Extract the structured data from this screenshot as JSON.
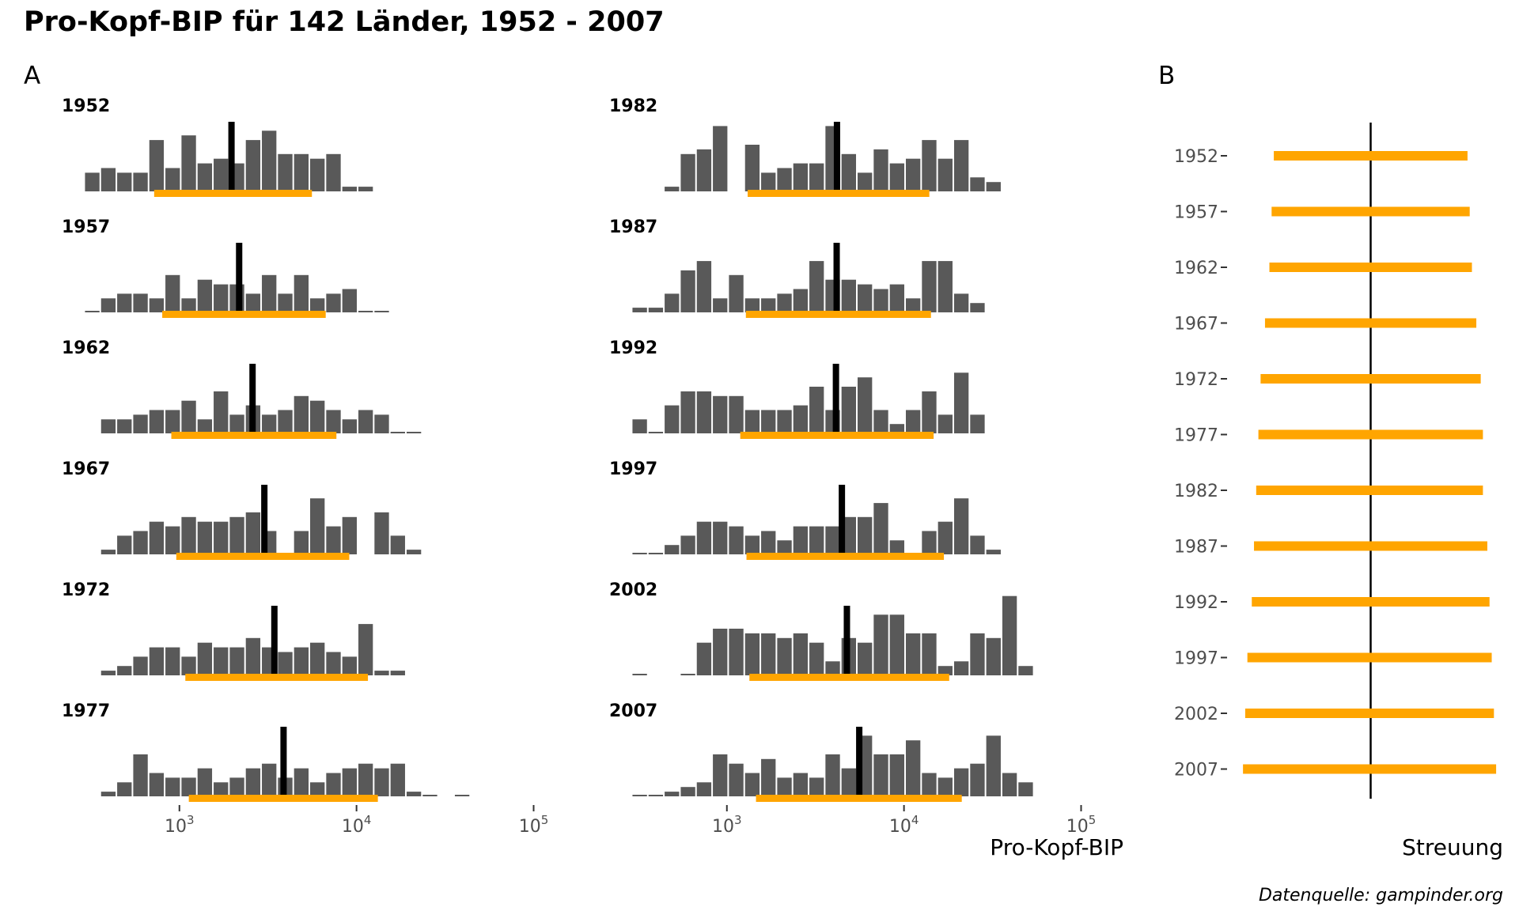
{
  "title": "Pro-Kopf-BIP für 142 Länder, 1952 - 2007",
  "caption": "Datenquelle: gampinder.org",
  "panel_a": {
    "tag": "A",
    "xlabel": "Pro-Kopf-BIP"
  },
  "panel_b": {
    "tag": "B",
    "xlabel": "Streuung"
  },
  "colors": {
    "bar": "#595959",
    "median": "#000000",
    "range": "#FFA500",
    "text": "#000000",
    "axis_text": "#4d4d4d"
  },
  "chart_data": [
    {
      "type": "bar",
      "name": "A",
      "x_scale": "log10",
      "x_ticks": [
        {
          "base": "10",
          "exp": "3",
          "value": 1000
        },
        {
          "base": "10",
          "exp": "4",
          "value": 10000
        },
        {
          "base": "10",
          "exp": "5",
          "value": 100000
        }
      ],
      "xlim": [
        250,
        130000
      ],
      "log_bin_width": 0.0908,
      "first_bin_center": 322,
      "panels": [
        {
          "year": "1952",
          "median": 1968,
          "range": [
            720,
            5600
          ],
          "counts": [
            4,
            5,
            4,
            4,
            11,
            5,
            12,
            6,
            7,
            6,
            11,
            13,
            8,
            8,
            7,
            8,
            1,
            1,
            0,
            0,
            0,
            0,
            0,
            0,
            0,
            0,
            0,
            0,
            0,
            0,
            0,
            0,
            0,
            0,
            0,
            0,
            0,
            0,
            0,
            0,
            0,
            0,
            0,
            0,
            0,
            0,
            0,
            0.2
          ]
        },
        {
          "year": "1957",
          "median": 2174,
          "range": [
            800,
            6700
          ],
          "counts": [
            0.2,
            3,
            4,
            4,
            3,
            8,
            3,
            7,
            6,
            6,
            4,
            8,
            4,
            8,
            3,
            4,
            5,
            0.2,
            0.2,
            0,
            0,
            0,
            0,
            0,
            0,
            0,
            0,
            0,
            0,
            0,
            0,
            0,
            0,
            0,
            0,
            0,
            0,
            0,
            0,
            0,
            0,
            0,
            0,
            0,
            0,
            0,
            0,
            0.2
          ]
        },
        {
          "year": "1962",
          "median": 2588,
          "range": [
            900,
            7700
          ],
          "counts": [
            0,
            3,
            3,
            4,
            5,
            5,
            7,
            3,
            9,
            4,
            6,
            4,
            5,
            8,
            7,
            5,
            3,
            5,
            4,
            0.2,
            0.2,
            0,
            0,
            0,
            0,
            0,
            0,
            0,
            0,
            0,
            0,
            0,
            0,
            0,
            0,
            0,
            0,
            0,
            0,
            0,
            0,
            0,
            0,
            0,
            0,
            0.2
          ]
        },
        {
          "year": "1967",
          "median": 3017,
          "range": [
            960,
            9100
          ],
          "counts": [
            0,
            1,
            4,
            5,
            7,
            6,
            8,
            7,
            7,
            8,
            9,
            5,
            0,
            5,
            12,
            6,
            8,
            0,
            9,
            4,
            1,
            0,
            0,
            0,
            0,
            0,
            0,
            0,
            0,
            0,
            0,
            0,
            0,
            0,
            0,
            0,
            0,
            0,
            0,
            0,
            0,
            0,
            0,
            0,
            0.2
          ]
        },
        {
          "year": "1972",
          "median": 3437,
          "range": [
            1080,
            11600
          ],
          "counts": [
            0,
            1,
            2,
            4,
            6,
            6,
            4,
            7,
            6,
            6,
            8,
            6,
            5,
            6,
            7,
            5,
            4,
            11,
            1,
            1,
            0,
            0,
            0,
            0,
            0,
            0,
            0,
            0,
            0,
            0,
            0,
            0,
            0,
            0,
            0,
            0,
            0,
            0,
            0,
            0,
            0,
            0,
            0,
            0,
            0,
            0,
            0,
            0.2
          ]
        },
        {
          "year": "1977",
          "median": 3873,
          "range": [
            1130,
            13200
          ],
          "counts": [
            0,
            1,
            3,
            9,
            5,
            4,
            4,
            6,
            3,
            4,
            6,
            7,
            4,
            6,
            3,
            5,
            6,
            7,
            6,
            7,
            1,
            0.2,
            0,
            0.2
          ]
        },
        {
          "year": "1982",
          "median": 4184,
          "range": [
            1310,
            13900
          ],
          "counts": [
            0,
            0,
            1,
            8,
            9,
            14,
            0,
            10,
            4,
            5,
            6,
            6,
            14,
            8,
            4,
            9,
            6,
            7,
            11,
            7,
            11,
            3,
            2
          ]
        },
        {
          "year": "1987",
          "median": 4167,
          "range": [
            1280,
            14200
          ],
          "counts": [
            1,
            1,
            4,
            9,
            11,
            3,
            8,
            3,
            3,
            4,
            5,
            11,
            7,
            7,
            6,
            5,
            6,
            3,
            11,
            11,
            4,
            2
          ]
        },
        {
          "year": "1992",
          "median": 4128,
          "range": [
            1190,
            14700
          ],
          "counts": [
            3,
            0.2,
            6,
            9,
            9,
            8,
            8,
            5,
            5,
            5,
            6,
            10,
            5,
            10,
            12,
            5,
            2,
            5,
            9,
            4,
            13,
            4
          ]
        },
        {
          "year": "1997",
          "median": 4460,
          "range": [
            1290,
            16800
          ],
          "counts": [
            0.2,
            0.2,
            2,
            4,
            7,
            7,
            6,
            4,
            5,
            3,
            6,
            6,
            6,
            8,
            8,
            11,
            3,
            0,
            5,
            7,
            12,
            4,
            1
          ]
        },
        {
          "year": "2002",
          "median": 4760,
          "range": [
            1340,
            18000
          ],
          "counts": [
            0.2,
            0,
            0,
            0.2,
            7,
            10,
            10,
            9,
            9,
            8,
            9,
            7,
            3,
            8,
            7,
            13,
            13,
            9,
            9,
            2,
            3,
            9,
            8,
            17,
            2
          ]
        },
        {
          "year": "2007",
          "median": 5590,
          "range": [
            1460,
            21200
          ],
          "counts": [
            0.2,
            0.2,
            1,
            2,
            3,
            9,
            7,
            5,
            8,
            4,
            5,
            4,
            9,
            6,
            13,
            9,
            9,
            12,
            5,
            4,
            6,
            7,
            13,
            5,
            3
          ]
        }
      ]
    },
    {
      "type": "range",
      "name": "B",
      "categories": [
        "1952",
        "1957",
        "1962",
        "1967",
        "1972",
        "1977",
        "1982",
        "1987",
        "1992",
        "1997",
        "2002",
        "2007"
      ],
      "ranges": [
        [
          -0.44,
          0.44
        ],
        [
          -0.45,
          0.45
        ],
        [
          -0.46,
          0.46
        ],
        [
          -0.48,
          0.48
        ],
        [
          -0.5,
          0.5
        ],
        [
          -0.51,
          0.51
        ],
        [
          -0.52,
          0.51
        ],
        [
          -0.53,
          0.53
        ],
        [
          -0.54,
          0.54
        ],
        [
          -0.56,
          0.55
        ],
        [
          -0.57,
          0.56
        ],
        [
          -0.58,
          0.57
        ]
      ],
      "xlim": [
        -0.62,
        0.62
      ],
      "center": 0
    }
  ]
}
